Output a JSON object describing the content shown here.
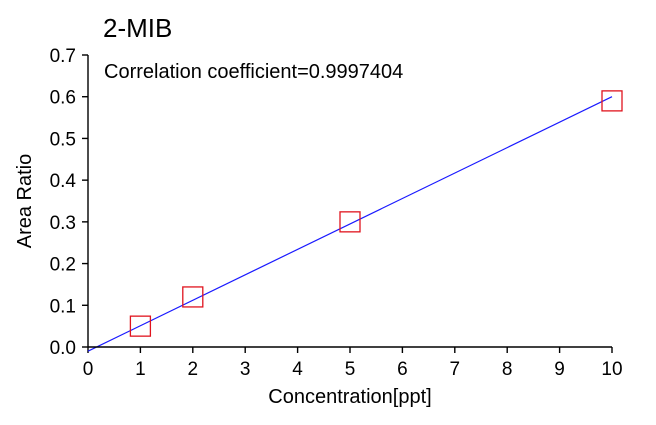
{
  "chart_data": {
    "type": "scatter",
    "title": "2-MIB",
    "annotation": "Correlation coefficient=0.9997404",
    "xlabel": "Concentration[ppt]",
    "ylabel": "Area Ratio",
    "xlim": [
      0,
      10
    ],
    "ylim": [
      0,
      0.7
    ],
    "x_ticks": [
      "0",
      "1",
      "2",
      "3",
      "4",
      "5",
      "6",
      "7",
      "8",
      "9",
      "10"
    ],
    "y_ticks": [
      "0.0",
      "0.1",
      "0.2",
      "0.3",
      "0.4",
      "0.5",
      "0.6",
      "0.7"
    ],
    "grid": false,
    "points": [
      {
        "x": 1,
        "y": 0.05
      },
      {
        "x": 2,
        "y": 0.12
      },
      {
        "x": 5,
        "y": 0.3
      },
      {
        "x": 10,
        "y": 0.59
      }
    ],
    "fit_line": {
      "x": [
        0,
        10
      ],
      "y": [
        -0.01,
        0.6
      ]
    },
    "colors": {
      "points": "#e0141e",
      "fit_line": "#1a1aff",
      "axes": "#000000"
    }
  }
}
